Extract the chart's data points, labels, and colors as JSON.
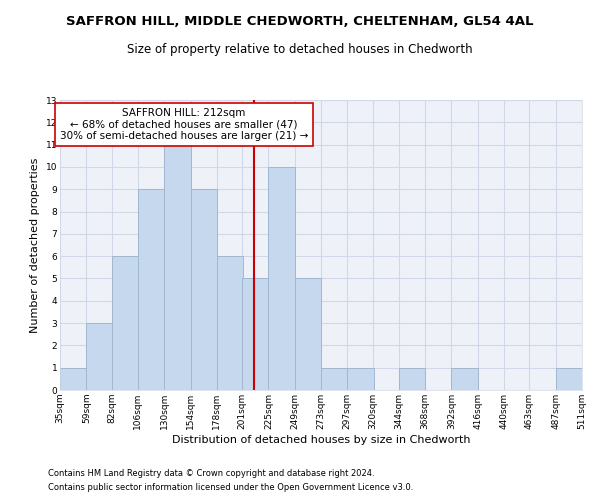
{
  "title": "SAFFRON HILL, MIDDLE CHEDWORTH, CHELTENHAM, GL54 4AL",
  "subtitle": "Size of property relative to detached houses in Chedworth",
  "xlabel": "Distribution of detached houses by size in Chedworth",
  "ylabel": "Number of detached properties",
  "footnote1": "Contains HM Land Registry data © Crown copyright and database right 2024.",
  "footnote2": "Contains public sector information licensed under the Open Government Licence v3.0.",
  "bin_labels": [
    "35sqm",
    "59sqm",
    "82sqm",
    "106sqm",
    "130sqm",
    "154sqm",
    "178sqm",
    "201sqm",
    "225sqm",
    "249sqm",
    "273sqm",
    "297sqm",
    "320sqm",
    "344sqm",
    "368sqm",
    "392sqm",
    "416sqm",
    "440sqm",
    "463sqm",
    "487sqm",
    "511sqm"
  ],
  "bar_values": [
    1,
    3,
    6,
    9,
    11,
    9,
    6,
    5,
    10,
    5,
    1,
    1,
    0,
    1,
    0,
    1,
    0,
    0,
    0,
    1
  ],
  "bar_color": "#c5d8ed",
  "bar_edgecolor": "#a0b8d0",
  "bar_left_edges": [
    35,
    59,
    82,
    106,
    130,
    154,
    178,
    201,
    225,
    249,
    273,
    297,
    320,
    344,
    368,
    392,
    416,
    440,
    463,
    487
  ],
  "bin_width": 24,
  "vline_x": 212,
  "vline_color": "#cc0000",
  "annotation_text": "SAFFRON HILL: 212sqm\n← 68% of detached houses are smaller (47)\n30% of semi-detached houses are larger (21) →",
  "annotation_box_color": "#ffffff",
  "annotation_box_edgecolor": "#cc0000",
  "ylim": [
    0,
    13
  ],
  "yticks": [
    0,
    1,
    2,
    3,
    4,
    5,
    6,
    7,
    8,
    9,
    10,
    11,
    12,
    13
  ],
  "grid_color": "#d0d8e8",
  "background_color": "#ffffff",
  "plot_bg_color": "#eef2f8",
  "title_fontsize": 9.5,
  "subtitle_fontsize": 8.5,
  "xlabel_fontsize": 8,
  "ylabel_fontsize": 8,
  "tick_fontsize": 6.5,
  "annotation_fontsize": 7.5,
  "footnote_fontsize": 6
}
